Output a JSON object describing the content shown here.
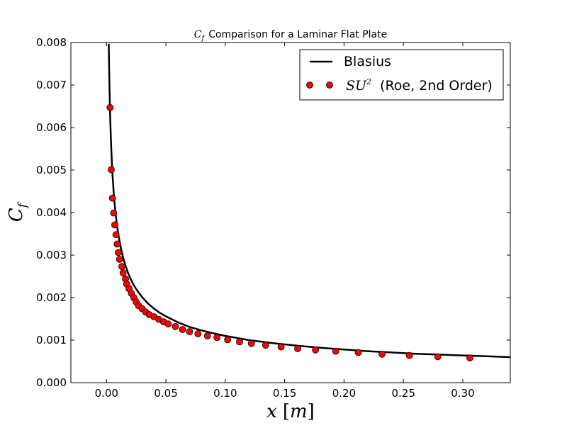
{
  "chart_data": {
    "type": "line",
    "title": {
      "math_main": "C",
      "math_sub": "f",
      "text": "Comparison for a Laminar Flat Plate"
    },
    "xlabel": {
      "math_var": "x",
      "unit_open": "[",
      "unit_var": "m",
      "unit_close": "]"
    },
    "ylabel": {
      "math_main": "C",
      "math_sub": "f"
    },
    "xlim": [
      -0.03,
      0.34
    ],
    "ylim": [
      0.0,
      0.008
    ],
    "x_ticks": [
      "0.00",
      "0.05",
      "0.10",
      "0.15",
      "0.20",
      "0.25",
      "0.30"
    ],
    "y_ticks": [
      "0.000",
      "0.001",
      "0.002",
      "0.003",
      "0.004",
      "0.005",
      "0.006",
      "0.007",
      "0.008"
    ],
    "grid": false,
    "legend_position": "top-right",
    "series": [
      {
        "name": "Blasius",
        "style": "line",
        "color": "#000000",
        "relation": "Cf = 0.664 / sqrt(Re_x)",
        "x": [
          0.0019,
          0.0021,
          0.0025,
          0.003,
          0.0035,
          0.004,
          0.005,
          0.006,
          0.007,
          0.008,
          0.009,
          0.01,
          0.012,
          0.014,
          0.016,
          0.018,
          0.02,
          0.023,
          0.026,
          0.03,
          0.035,
          0.04,
          0.045,
          0.05,
          0.06,
          0.07,
          0.08,
          0.09,
          0.1,
          0.12,
          0.14,
          0.16,
          0.18,
          0.2,
          0.22,
          0.24,
          0.26,
          0.28,
          0.3,
          0.32,
          0.34
        ],
        "y": [
          0.00797,
          0.00759,
          0.00696,
          0.00635,
          0.00588,
          0.0055,
          0.00492,
          0.00449,
          0.00416,
          0.00389,
          0.00367,
          0.00348,
          0.00318,
          0.00294,
          0.00275,
          0.00259,
          0.00246,
          0.00229,
          0.00216,
          0.00201,
          0.00186,
          0.00174,
          0.00164,
          0.00156,
          0.00142,
          0.00131,
          0.00123,
          0.00116,
          0.0011,
          0.001,
          0.00093,
          0.00087,
          0.00082,
          0.00078,
          0.00074,
          0.00071,
          0.00068,
          0.00066,
          0.00064,
          0.00062,
          0.0006
        ]
      },
      {
        "name_math": "SU",
        "name_sup": "2",
        "name_text": "(Roe, 2nd Order)",
        "style": "markers",
        "color": "#ff0000",
        "edge_color": "#000000",
        "x": [
          0.003,
          0.004,
          0.005,
          0.006,
          0.007,
          0.008,
          0.009,
          0.01,
          0.011,
          0.013,
          0.014,
          0.016,
          0.017,
          0.019,
          0.021,
          0.023,
          0.025,
          0.027,
          0.03,
          0.033,
          0.036,
          0.04,
          0.044,
          0.048,
          0.052,
          0.058,
          0.064,
          0.07,
          0.077,
          0.085,
          0.093,
          0.102,
          0.112,
          0.122,
          0.134,
          0.147,
          0.161,
          0.176,
          0.193,
          0.212,
          0.232,
          0.255,
          0.279,
          0.306
        ],
        "y": [
          0.00647,
          0.00501,
          0.00434,
          0.00399,
          0.00371,
          0.00348,
          0.00326,
          0.00306,
          0.0029,
          0.00273,
          0.00258,
          0.00244,
          0.00232,
          0.00221,
          0.0021,
          0.002,
          0.0019,
          0.00181,
          0.00174,
          0.00166,
          0.0016,
          0.00155,
          0.00149,
          0.00143,
          0.00138,
          0.00132,
          0.00125,
          0.0012,
          0.00115,
          0.0011,
          0.00106,
          0.00101,
          0.00096,
          0.00092,
          0.00088,
          0.00084,
          0.0008,
          0.00077,
          0.00074,
          0.00071,
          0.00067,
          0.00064,
          0.00061,
          0.00058
        ]
      }
    ]
  }
}
